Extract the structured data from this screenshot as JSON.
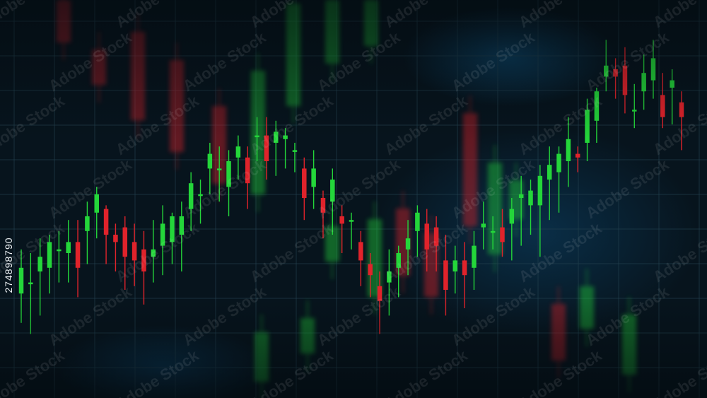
{
  "stock_id": "274898790",
  "watermark_text": "Adobe Stock",
  "colors": {
    "background": "#07141d",
    "grid": "#23414f",
    "up": "#24d63a",
    "down": "#e0232b",
    "glow": "#0d4f7c"
  },
  "chart_data": {
    "type": "candlestick",
    "title": "",
    "xlabel": "",
    "ylabel": "",
    "grid": true,
    "ylim": [
      0,
      100
    ],
    "candles": [
      {
        "o": 24,
        "c": 31,
        "h": 36,
        "l": 16
      },
      {
        "o": 27,
        "c": 27,
        "h": 35,
        "l": 13
      },
      {
        "o": 30,
        "c": 34,
        "h": 39,
        "l": 18
      },
      {
        "o": 31,
        "c": 38,
        "h": 40,
        "l": 24
      },
      {
        "o": 36,
        "c": 36,
        "h": 41,
        "l": 27
      },
      {
        "o": 35,
        "c": 38,
        "h": 44,
        "l": 27
      },
      {
        "o": 38,
        "c": 31,
        "h": 44,
        "l": 23
      },
      {
        "o": 41,
        "c": 45,
        "h": 49,
        "l": 32
      },
      {
        "o": 46,
        "c": 51,
        "h": 53,
        "l": 39
      },
      {
        "o": 47,
        "c": 40,
        "h": 48,
        "l": 32
      },
      {
        "o": 40,
        "c": 38,
        "h": 43,
        "l": 30
      },
      {
        "o": 42,
        "c": 34,
        "h": 45,
        "l": 25
      },
      {
        "o": 38,
        "c": 33,
        "h": 43,
        "l": 26
      },
      {
        "o": 36,
        "c": 30,
        "h": 41,
        "l": 21
      },
      {
        "o": 34,
        "c": 36,
        "h": 44,
        "l": 27
      },
      {
        "o": 37,
        "c": 43,
        "h": 48,
        "l": 29
      },
      {
        "o": 38,
        "c": 45,
        "h": 46,
        "l": 32
      },
      {
        "o": 40,
        "c": 45,
        "h": 49,
        "l": 30
      },
      {
        "o": 47,
        "c": 54,
        "h": 57,
        "l": 41
      },
      {
        "o": 51,
        "c": 51,
        "h": 55,
        "l": 43
      },
      {
        "o": 58,
        "c": 62,
        "h": 65,
        "l": 51
      },
      {
        "o": 58,
        "c": 58,
        "h": 64,
        "l": 49
      },
      {
        "o": 53,
        "c": 60,
        "h": 63,
        "l": 45
      },
      {
        "o": 61,
        "c": 64,
        "h": 67,
        "l": 55
      },
      {
        "o": 61,
        "c": 54,
        "h": 64,
        "l": 47
      },
      {
        "o": 67,
        "c": 67,
        "h": 72,
        "l": 60
      },
      {
        "o": 67,
        "c": 60,
        "h": 72,
        "l": 55
      },
      {
        "o": 65,
        "c": 68,
        "h": 71,
        "l": 56
      },
      {
        "o": 66,
        "c": 67,
        "h": 69,
        "l": 58
      },
      {
        "o": 63,
        "c": 63,
        "h": 65,
        "l": 57
      },
      {
        "o": 58,
        "c": 50,
        "h": 61,
        "l": 44
      },
      {
        "o": 53,
        "c": 58,
        "h": 63,
        "l": 47
      },
      {
        "o": 50,
        "c": 46,
        "h": 52,
        "l": 39
      },
      {
        "o": 49,
        "c": 55,
        "h": 58,
        "l": 40
      },
      {
        "o": 45,
        "c": 43,
        "h": 48,
        "l": 35
      },
      {
        "o": 44,
        "c": 44,
        "h": 46,
        "l": 36
      },
      {
        "o": 38,
        "c": 33,
        "h": 41,
        "l": 26
      },
      {
        "o": 32,
        "c": 29,
        "h": 35,
        "l": 23
      },
      {
        "o": 26,
        "c": 22,
        "h": 30,
        "l": 13
      },
      {
        "o": 27,
        "c": 30,
        "h": 36,
        "l": 18
      },
      {
        "o": 31,
        "c": 35,
        "h": 37,
        "l": 23
      },
      {
        "o": 36,
        "c": 39,
        "h": 44,
        "l": 29
      },
      {
        "o": 41,
        "c": 46,
        "h": 48,
        "l": 34
      },
      {
        "o": 43,
        "c": 36,
        "h": 47,
        "l": 30
      },
      {
        "o": 42,
        "c": 37,
        "h": 45,
        "l": 30
      },
      {
        "o": 33,
        "c": 25,
        "h": 40,
        "l": 18
      },
      {
        "o": 30,
        "c": 33,
        "h": 37,
        "l": 24
      },
      {
        "o": 33,
        "c": 29,
        "h": 38,
        "l": 20
      },
      {
        "o": 31,
        "c": 37,
        "h": 41,
        "l": 25
      },
      {
        "o": 42,
        "c": 43,
        "h": 49,
        "l": 36
      },
      {
        "o": 41,
        "c": 41,
        "h": 45,
        "l": 36
      },
      {
        "o": 42,
        "c": 38,
        "h": 47,
        "l": 34
      },
      {
        "o": 43,
        "c": 47,
        "h": 50,
        "l": 33
      },
      {
        "o": 50,
        "c": 51,
        "h": 56,
        "l": 37
      },
      {
        "o": 48,
        "c": 52,
        "h": 55,
        "l": 40
      },
      {
        "o": 48,
        "c": 56,
        "h": 59,
        "l": 34
      },
      {
        "o": 55,
        "c": 59,
        "h": 64,
        "l": 44
      },
      {
        "o": 57,
        "c": 62,
        "h": 64,
        "l": 46
      },
      {
        "o": 60,
        "c": 66,
        "h": 72,
        "l": 53
      },
      {
        "o": 62,
        "c": 61,
        "h": 64,
        "l": 57
      },
      {
        "o": 65,
        "c": 74,
        "h": 77,
        "l": 60
      },
      {
        "o": 71,
        "c": 79,
        "h": 80,
        "l": 65
      },
      {
        "o": 83,
        "c": 86,
        "h": 93,
        "l": 79
      },
      {
        "o": 85,
        "c": 83,
        "h": 88,
        "l": 77
      },
      {
        "o": 86,
        "c": 78,
        "h": 91,
        "l": 73
      },
      {
        "o": 74,
        "c": 74,
        "h": 81,
        "l": 69
      },
      {
        "o": 79,
        "c": 84,
        "h": 89,
        "l": 74
      },
      {
        "o": 82,
        "c": 88,
        "h": 93,
        "l": 77
      },
      {
        "o": 78,
        "c": 72,
        "h": 84,
        "l": 69
      },
      {
        "o": 80,
        "c": 82,
        "h": 85,
        "l": 70
      },
      {
        "o": 76,
        "c": 72,
        "h": 79,
        "l": 63
      }
    ]
  }
}
